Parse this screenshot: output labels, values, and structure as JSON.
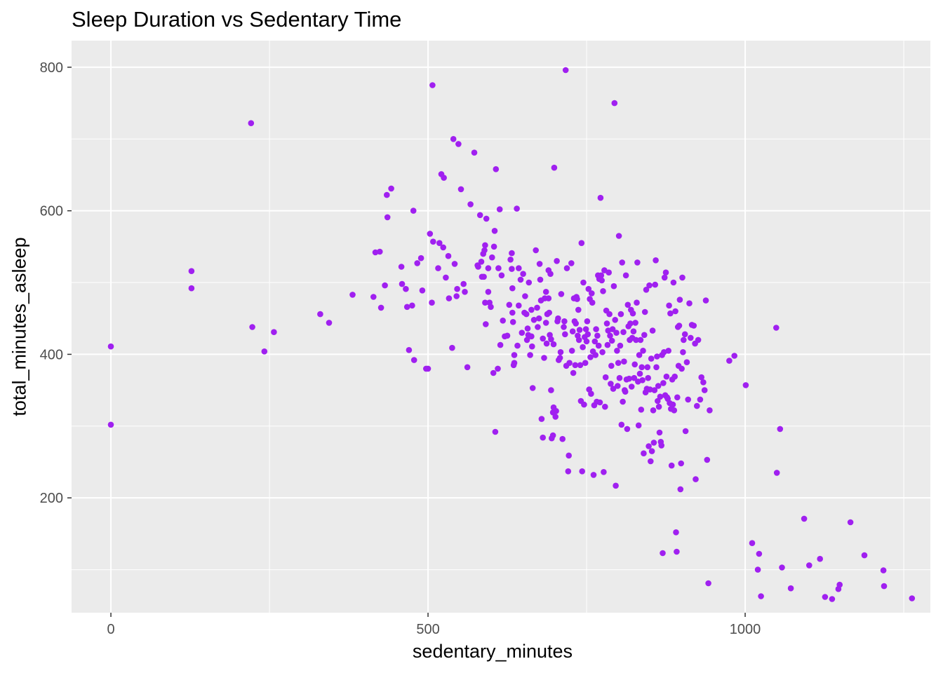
{
  "chart_data": {
    "type": "scatter",
    "title": "Sleep Duration vs Sedentary Time",
    "xlabel": "sedentary_minutes",
    "ylabel": "total_minutes_asleep",
    "xlim": [
      -62,
      1292
    ],
    "ylim": [
      40,
      837
    ],
    "x_ticks": [
      0,
      500,
      1000
    ],
    "y_ticks": [
      200,
      400,
      600,
      800
    ],
    "grid": true,
    "point_color": "#A020F0",
    "panel_color": "#EBEBEB",
    "points": [
      [
        0,
        411
      ],
      [
        0,
        302
      ],
      [
        127,
        516
      ],
      [
        127,
        492
      ],
      [
        221,
        722
      ],
      [
        223,
        438
      ],
      [
        242,
        404
      ],
      [
        257,
        431
      ],
      [
        330,
        456
      ],
      [
        344,
        444
      ],
      [
        381,
        483
      ],
      [
        414,
        480
      ],
      [
        417,
        542
      ],
      [
        424,
        543
      ],
      [
        426,
        465
      ],
      [
        432,
        496
      ],
      [
        435,
        622
      ],
      [
        436,
        591
      ],
      [
        442,
        631
      ],
      [
        458,
        522
      ],
      [
        459,
        498
      ],
      [
        465,
        491
      ],
      [
        467,
        466
      ],
      [
        470,
        406
      ],
      [
        475,
        468
      ],
      [
        477,
        600
      ],
      [
        478,
        392
      ],
      [
        483,
        527
      ],
      [
        489,
        534
      ],
      [
        491,
        489
      ],
      [
        497,
        380
      ],
      [
        500,
        380
      ],
      [
        503,
        568
      ],
      [
        506,
        472
      ],
      [
        507,
        775
      ],
      [
        508,
        557
      ],
      [
        516,
        520
      ],
      [
        518,
        555
      ],
      [
        521,
        651
      ],
      [
        524,
        549
      ],
      [
        525,
        646
      ],
      [
        528,
        507
      ],
      [
        532,
        537
      ],
      [
        533,
        478
      ],
      [
        538,
        409
      ],
      [
        540,
        700
      ],
      [
        542,
        526
      ],
      [
        545,
        481
      ],
      [
        546,
        491
      ],
      [
        548,
        693
      ],
      [
        552,
        630
      ],
      [
        556,
        498
      ],
      [
        558,
        487
      ],
      [
        562,
        382
      ],
      [
        567,
        609
      ],
      [
        573,
        681
      ],
      [
        578,
        524
      ],
      [
        579,
        522
      ],
      [
        582,
        594
      ],
      [
        584,
        529
      ],
      [
        585,
        508
      ],
      [
        587,
        540
      ],
      [
        588,
        508
      ],
      [
        589,
        545
      ],
      [
        590,
        552
      ],
      [
        590,
        472
      ],
      [
        591,
        442
      ],
      [
        592,
        589
      ],
      [
        595,
        520
      ],
      [
        595,
        487
      ],
      [
        597,
        472
      ],
      [
        599,
        466
      ],
      [
        601,
        535
      ],
      [
        603,
        374
      ],
      [
        604,
        550
      ],
      [
        605,
        572
      ],
      [
        606,
        292
      ],
      [
        607,
        658
      ],
      [
        610,
        380
      ],
      [
        611,
        520
      ],
      [
        613,
        602
      ],
      [
        614,
        413
      ],
      [
        616,
        510
      ],
      [
        618,
        447
      ],
      [
        621,
        425
      ],
      [
        625,
        426
      ],
      [
        628,
        469
      ],
      [
        630,
        532
      ],
      [
        632,
        541
      ],
      [
        632,
        519
      ],
      [
        633,
        492
      ],
      [
        633,
        458
      ],
      [
        634,
        445
      ],
      [
        635,
        385
      ],
      [
        636,
        399
      ],
      [
        636,
        388
      ],
      [
        640,
        603
      ],
      [
        641,
        412
      ],
      [
        643,
        520
      ],
      [
        643,
        468
      ],
      [
        646,
        504
      ],
      [
        648,
        430
      ],
      [
        650,
        512
      ],
      [
        652,
        458
      ],
      [
        653,
        481
      ],
      [
        655,
        456
      ],
      [
        656,
        420
      ],
      [
        657,
        436
      ],
      [
        658,
        427
      ],
      [
        659,
        500
      ],
      [
        661,
        399
      ],
      [
        663,
        425
      ],
      [
        663,
        462
      ],
      [
        664,
        411
      ],
      [
        665,
        353
      ],
      [
        667,
        448
      ],
      [
        670,
        545
      ],
      [
        672,
        465
      ],
      [
        673,
        438
      ],
      [
        675,
        450
      ],
      [
        676,
        526
      ],
      [
        677,
        504
      ],
      [
        678,
        475
      ],
      [
        679,
        310
      ],
      [
        681,
        422
      ],
      [
        681,
        284
      ],
      [
        683,
        395
      ],
      [
        684,
        478
      ],
      [
        686,
        487
      ],
      [
        686,
        444
      ],
      [
        687,
        415
      ],
      [
        688,
        456
      ],
      [
        690,
        517
      ],
      [
        690,
        478
      ],
      [
        691,
        458
      ],
      [
        692,
        427
      ],
      [
        693,
        512
      ],
      [
        694,
        421
      ],
      [
        694,
        350
      ],
      [
        695,
        283
      ],
      [
        697,
        319
      ],
      [
        697,
        287
      ],
      [
        698,
        414
      ],
      [
        698,
        326
      ],
      [
        699,
        660
      ],
      [
        701,
        313
      ],
      [
        702,
        321
      ],
      [
        703,
        530
      ],
      [
        704,
        446
      ],
      [
        705,
        450
      ],
      [
        706,
        392
      ],
      [
        708,
        395
      ],
      [
        709,
        403
      ],
      [
        710,
        484
      ],
      [
        712,
        282
      ],
      [
        714,
        438
      ],
      [
        715,
        446
      ],
      [
        716,
        428
      ],
      [
        717,
        796
      ],
      [
        718,
        384
      ],
      [
        719,
        520
      ],
      [
        721,
        237
      ],
      [
        722,
        259
      ],
      [
        723,
        388
      ],
      [
        726,
        527
      ],
      [
        727,
        405
      ],
      [
        728,
        432
      ],
      [
        729,
        374
      ],
      [
        730,
        478
      ],
      [
        731,
        446
      ],
      [
        732,
        385
      ],
      [
        733,
        443
      ],
      [
        734,
        480
      ],
      [
        735,
        477
      ],
      [
        736,
        426
      ],
      [
        737,
        462
      ],
      [
        738,
        420
      ],
      [
        739,
        434
      ],
      [
        740,
        385
      ],
      [
        741,
        335
      ],
      [
        742,
        555
      ],
      [
        743,
        237
      ],
      [
        744,
        410
      ],
      [
        745,
        500
      ],
      [
        746,
        330
      ],
      [
        747,
        424
      ],
      [
        748,
        388
      ],
      [
        749,
        435
      ],
      [
        750,
        418
      ],
      [
        751,
        446
      ],
      [
        752,
        428
      ],
      [
        753,
        491
      ],
      [
        754,
        351
      ],
      [
        755,
        477
      ],
      [
        756,
        396
      ],
      [
        757,
        345
      ],
      [
        758,
        485
      ],
      [
        759,
        472
      ],
      [
        760,
        404
      ],
      [
        761,
        232
      ],
      [
        762,
        329
      ],
      [
        763,
        418
      ],
      [
        764,
        399
      ],
      [
        765,
        435
      ],
      [
        766,
        334
      ],
      [
        767,
        426
      ],
      [
        768,
        510
      ],
      [
        769,
        412
      ],
      [
        770,
        505
      ],
      [
        771,
        333
      ],
      [
        772,
        618
      ],
      [
        773,
        510
      ],
      [
        774,
        503
      ],
      [
        775,
        403
      ],
      [
        776,
        488
      ],
      [
        777,
        236
      ],
      [
        778,
        517
      ],
      [
        779,
        327
      ],
      [
        780,
        368
      ],
      [
        781,
        461
      ],
      [
        782,
        443
      ],
      [
        783,
        413
      ],
      [
        784,
        433
      ],
      [
        785,
        514
      ],
      [
        786,
        456
      ],
      [
        787,
        426
      ],
      [
        788,
        359
      ],
      [
        789,
        384
      ],
      [
        790,
        419
      ],
      [
        791,
        435
      ],
      [
        792,
        352
      ],
      [
        793,
        495
      ],
      [
        794,
        750
      ],
      [
        795,
        448
      ],
      [
        796,
        217
      ],
      [
        797,
        430
      ],
      [
        798,
        405
      ],
      [
        799,
        356
      ],
      [
        800,
        388
      ],
      [
        801,
        565
      ],
      [
        802,
        367
      ],
      [
        803,
        412
      ],
      [
        804,
        456
      ],
      [
        805,
        302
      ],
      [
        806,
        528
      ],
      [
        807,
        334
      ],
      [
        808,
        431
      ],
      [
        809,
        390
      ],
      [
        810,
        350
      ],
      [
        811,
        348
      ],
      [
        812,
        510
      ],
      [
        813,
        365
      ],
      [
        814,
        296
      ],
      [
        815,
        469
      ],
      [
        816,
        439
      ],
      [
        817,
        366
      ],
      [
        818,
        420
      ],
      [
        819,
        443
      ],
      [
        820,
        462
      ],
      [
        821,
        355
      ],
      [
        822,
        423
      ],
      [
        823,
        457
      ],
      [
        824,
        432
      ],
      [
        825,
        367
      ],
      [
        826,
        386
      ],
      [
        827,
        444
      ],
      [
        828,
        420
      ],
      [
        829,
        472
      ],
      [
        830,
        528
      ],
      [
        831,
        362
      ],
      [
        832,
        301
      ],
      [
        833,
        399
      ],
      [
        834,
        373
      ],
      [
        835,
        420
      ],
      [
        836,
        323
      ],
      [
        837,
        382
      ],
      [
        838,
        364
      ],
      [
        839,
        405
      ],
      [
        840,
        262
      ],
      [
        841,
        427
      ],
      [
        842,
        459
      ],
      [
        843,
        347
      ],
      [
        844,
        490
      ],
      [
        845,
        352
      ],
      [
        846,
        382
      ],
      [
        847,
        367
      ],
      [
        848,
        272
      ],
      [
        849,
        496
      ],
      [
        850,
        351
      ],
      [
        851,
        251
      ],
      [
        852,
        394
      ],
      [
        853,
        265
      ],
      [
        854,
        433
      ],
      [
        855,
        322
      ],
      [
        856,
        277
      ],
      [
        857,
        350
      ],
      [
        858,
        497
      ],
      [
        859,
        531
      ],
      [
        860,
        382
      ],
      [
        861,
        397
      ],
      [
        862,
        335
      ],
      [
        863,
        356
      ],
      [
        864,
        327
      ],
      [
        865,
        291
      ],
      [
        866,
        341
      ],
      [
        867,
        278
      ],
      [
        868,
        273
      ],
      [
        869,
        399
      ],
      [
        870,
        123
      ],
      [
        871,
        360
      ],
      [
        872,
        403
      ],
      [
        873,
        507
      ],
      [
        874,
        343
      ],
      [
        875,
        514
      ],
      [
        876,
        369
      ],
      [
        877,
        340
      ],
      [
        878,
        338
      ],
      [
        879,
        405
      ],
      [
        880,
        468
      ],
      [
        881,
        332
      ],
      [
        882,
        457
      ],
      [
        883,
        324
      ],
      [
        884,
        245
      ],
      [
        885,
        365
      ],
      [
        886,
        330
      ],
      [
        887,
        500
      ],
      [
        888,
        322
      ],
      [
        889,
        369
      ],
      [
        890,
        460
      ],
      [
        891,
        152
      ],
      [
        892,
        125
      ],
      [
        893,
        340
      ],
      [
        894,
        438
      ],
      [
        895,
        384
      ],
      [
        896,
        440
      ],
      [
        897,
        476
      ],
      [
        898,
        212
      ],
      [
        899,
        248
      ],
      [
        900,
        380
      ],
      [
        901,
        507
      ],
      [
        902,
        403
      ],
      [
        903,
        420
      ],
      [
        905,
        428
      ],
      [
        906,
        293
      ],
      [
        908,
        389
      ],
      [
        910,
        337
      ],
      [
        912,
        471
      ],
      [
        914,
        423
      ],
      [
        916,
        441
      ],
      [
        919,
        440
      ],
      [
        921,
        415
      ],
      [
        922,
        226
      ],
      [
        924,
        328
      ],
      [
        926,
        420
      ],
      [
        929,
        337
      ],
      [
        931,
        368
      ],
      [
        934,
        361
      ],
      [
        936,
        350
      ],
      [
        938,
        475
      ],
      [
        940,
        253
      ],
      [
        942,
        81
      ],
      [
        944,
        322
      ],
      [
        975,
        391
      ],
      [
        983,
        398
      ],
      [
        1001,
        357
      ],
      [
        1011,
        137
      ],
      [
        1020,
        100
      ],
      [
        1022,
        122
      ],
      [
        1025,
        63
      ],
      [
        1049,
        437
      ],
      [
        1050,
        235
      ],
      [
        1055,
        296
      ],
      [
        1058,
        103
      ],
      [
        1072,
        74
      ],
      [
        1093,
        171
      ],
      [
        1101,
        106
      ],
      [
        1118,
        115
      ],
      [
        1126,
        62
      ],
      [
        1137,
        59
      ],
      [
        1147,
        73
      ],
      [
        1149,
        79
      ],
      [
        1166,
        166
      ],
      [
        1188,
        120
      ],
      [
        1218,
        99
      ],
      [
        1219,
        77
      ],
      [
        1263,
        60
      ]
    ]
  }
}
